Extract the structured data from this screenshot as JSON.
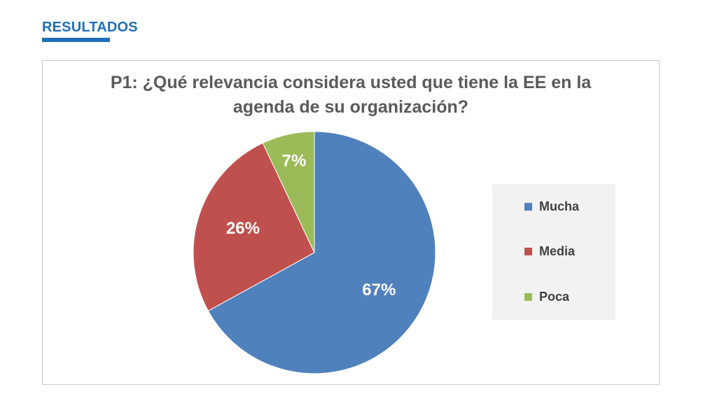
{
  "header": {
    "title": "RESULTADOS"
  },
  "colors": {
    "accent": "#1f6fb8",
    "mucha": "#4f81bd",
    "media": "#c0504d",
    "poca": "#9bbb59"
  },
  "chart_data": {
    "type": "pie",
    "title": "P1: ¿Qué relevancia considera usted que tiene la EE en la agenda de su organización?",
    "title_lines": [
      "P1: ¿Qué relevancia considera usted que tiene la EE en la",
      "agenda de su organización?"
    ],
    "categories": [
      "Mucha",
      "Media",
      "Poca"
    ],
    "values": [
      67,
      26,
      7
    ],
    "labels": [
      "67%",
      "26%",
      "7%"
    ],
    "colors": [
      "#4f81bd",
      "#c0504d",
      "#9bbb59"
    ],
    "legend_position": "right"
  }
}
